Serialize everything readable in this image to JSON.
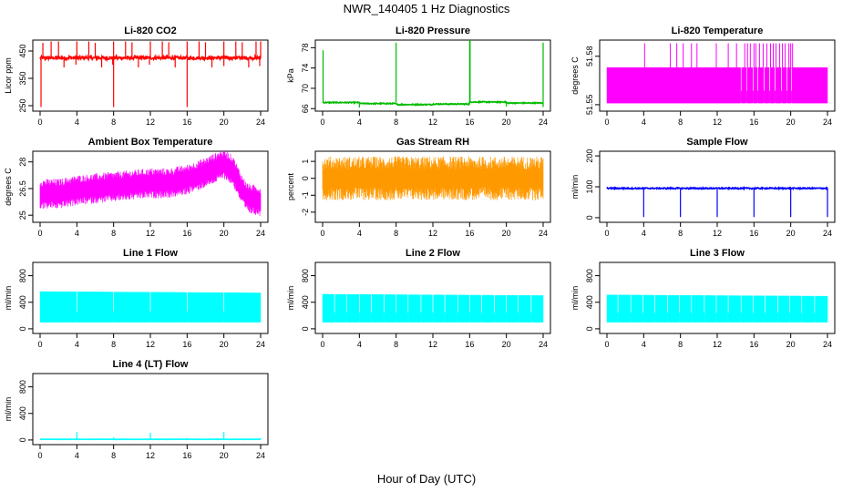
{
  "figure": {
    "title": "NWR_140405  1 Hz Diagnostics",
    "xlabel": "Hour of Day (UTC)"
  },
  "chart_data": [
    {
      "id": "co2",
      "type": "line",
      "title": "Li-820 CO2",
      "ylabel": "Licor ppm",
      "color": "#ff0000",
      "xlim": [
        0,
        24
      ],
      "ylim": [
        230,
        490
      ],
      "xticks": [
        0,
        4,
        8,
        12,
        16,
        20,
        24
      ],
      "yticks": [
        250,
        350,
        450
      ],
      "baseline": 425,
      "noise": 6,
      "spikes_up": [
        [
          0.3,
          480
        ],
        [
          1.2,
          485
        ],
        [
          2.0,
          485
        ],
        [
          4.0,
          485
        ],
        [
          5.3,
          485
        ],
        [
          6.0,
          480
        ],
        [
          8.0,
          485
        ],
        [
          9.3,
          485
        ],
        [
          10.0,
          482
        ],
        [
          12.0,
          485
        ],
        [
          13.3,
          485
        ],
        [
          14.0,
          482
        ],
        [
          16.0,
          485
        ],
        [
          17.3,
          485
        ],
        [
          18.0,
          482
        ],
        [
          20.0,
          485
        ],
        [
          21.3,
          485
        ],
        [
          22.0,
          482
        ],
        [
          23.5,
          485
        ],
        [
          24.0,
          485
        ]
      ],
      "spikes_down": [
        [
          0.1,
          245
        ],
        [
          2.6,
          390
        ],
        [
          3.9,
          400
        ],
        [
          6.7,
          390
        ],
        [
          7.9,
          400
        ],
        [
          8.0,
          245
        ],
        [
          10.7,
          390
        ],
        [
          11.9,
          400
        ],
        [
          14.7,
          390
        ],
        [
          16.0,
          245
        ],
        [
          18.7,
          390
        ],
        [
          20.0,
          395
        ],
        [
          22.7,
          390
        ],
        [
          23.9,
          395
        ]
      ]
    },
    {
      "id": "pressure",
      "type": "line",
      "title": "Li-820 Pressure",
      "ylabel": "kPa",
      "color": "#00bb00",
      "xlim": [
        0,
        24
      ],
      "ylim": [
        65.5,
        79.5
      ],
      "xticks": [
        0,
        4,
        8,
        12,
        16,
        20,
        24
      ],
      "yticks": [
        66,
        70,
        74,
        78
      ],
      "baseline_segments": [
        [
          0,
          4,
          67.2
        ],
        [
          4,
          8,
          67.0
        ],
        [
          8,
          12,
          66.8
        ],
        [
          12,
          16,
          66.9
        ],
        [
          16,
          20,
          67.3
        ],
        [
          20,
          24,
          67.1
        ]
      ],
      "noise": 0.1,
      "spikes_up": [
        [
          0.05,
          77.5
        ],
        [
          8.0,
          79.0
        ],
        [
          16.0,
          79.5
        ],
        [
          16.05,
          79.5
        ],
        [
          24.0,
          79.0
        ]
      ],
      "spikes_down": [
        [
          4.0,
          66.2
        ],
        [
          20.0,
          66.4
        ],
        [
          24.0,
          66.3
        ]
      ]
    },
    {
      "id": "temp",
      "type": "line",
      "title": "Li-820 Temperature",
      "ylabel": "degrees C",
      "color": "#ff00ff",
      "xlim": [
        0,
        24
      ],
      "ylim": [
        51.546,
        51.59
      ],
      "xticks": [
        0,
        4,
        8,
        12,
        16,
        20,
        24
      ],
      "yticks": [
        51.55,
        51.58
      ],
      "band": [
        51.551,
        51.573
      ],
      "spike_top": 51.588,
      "spikes_up": [
        [
          4.1,
          51.588
        ],
        [
          6.9,
          51.588
        ],
        [
          7.6,
          51.588
        ],
        [
          8.3,
          51.588
        ],
        [
          9.2,
          51.588
        ],
        [
          9.8,
          51.588
        ],
        [
          11.9,
          51.588
        ],
        [
          13.2,
          51.588
        ],
        [
          14.1,
          51.588
        ],
        [
          15.0,
          51.588
        ],
        [
          15.3,
          51.588
        ],
        [
          15.6,
          51.588
        ],
        [
          16.0,
          51.588
        ],
        [
          16.2,
          51.588
        ],
        [
          16.6,
          51.588
        ],
        [
          17.0,
          51.588
        ],
        [
          17.4,
          51.588
        ],
        [
          17.8,
          51.588
        ],
        [
          18.1,
          51.588
        ],
        [
          18.4,
          51.588
        ],
        [
          18.8,
          51.588
        ],
        [
          19.1,
          51.588
        ],
        [
          19.4,
          51.588
        ],
        [
          19.8,
          51.588
        ],
        [
          20.0,
          51.588
        ],
        [
          20.2,
          51.588
        ]
      ],
      "gaps": [
        14.6,
        15.2,
        15.9,
        16.4,
        17.1,
        17.7,
        18.3,
        19.0,
        19.6,
        20.1
      ]
    },
    {
      "id": "ambient",
      "type": "line",
      "title": "Ambient Box Temperature",
      "ylabel": "degrees C",
      "color": "#ff00ff",
      "xlim": [
        0,
        24
      ],
      "ylim": [
        24.6,
        28.6
      ],
      "xticks": [
        0,
        4,
        8,
        12,
        16,
        20,
        24
      ],
      "yticks": [
        25.0,
        26.5,
        28.0
      ],
      "center": [
        [
          0,
          26.2
        ],
        [
          2,
          26.2
        ],
        [
          4,
          26.4
        ],
        [
          8,
          26.6
        ],
        [
          12,
          26.8
        ],
        [
          14,
          26.8
        ],
        [
          16,
          27.0
        ],
        [
          18,
          27.4
        ],
        [
          20,
          27.9
        ],
        [
          21,
          27.5
        ],
        [
          22,
          26.4
        ],
        [
          22.5,
          26.0
        ],
        [
          23,
          25.9
        ],
        [
          24,
          25.8
        ]
      ],
      "amplitude": 0.85
    },
    {
      "id": "rh",
      "type": "line",
      "title": "Gas Stream RH",
      "ylabel": "percent",
      "color": "#ff9900",
      "xlim": [
        0,
        24
      ],
      "ylim": [
        -2.6,
        1.6
      ],
      "xticks": [
        0,
        4,
        8,
        12,
        16,
        20,
        24
      ],
      "yticks": [
        -2,
        -1,
        0,
        1
      ],
      "center": 0.0,
      "amplitude": 1.3
    },
    {
      "id": "sample",
      "type": "line",
      "title": "Sample Flow",
      "ylabel": "ml/min",
      "color": "#0000ff",
      "xlim": [
        0,
        24
      ],
      "ylim": [
        -15,
        215
      ],
      "xticks": [
        0,
        4,
        8,
        12,
        16,
        20,
        24
      ],
      "yticks": [
        0,
        100,
        200
      ],
      "baseline": 95,
      "noise": 2,
      "spikes_down": [
        [
          4.0,
          2
        ],
        [
          8.0,
          2
        ],
        [
          12.0,
          2
        ],
        [
          16.0,
          2
        ],
        [
          20.0,
          2
        ],
        [
          24.0,
          2
        ]
      ]
    },
    {
      "id": "line1",
      "type": "line",
      "title": "Line 1 Flow",
      "ylabel": "ml/min",
      "color": "#00ffff",
      "xlim": [
        0,
        24
      ],
      "ylim": [
        -70,
        1000
      ],
      "xticks": [
        0,
        4,
        8,
        12,
        16,
        20,
        24
      ],
      "yticks": [
        0,
        400,
        800
      ],
      "band": [
        100,
        560
      ],
      "band_top_end": 540,
      "gaps": [
        4.0,
        8.0,
        12.0,
        16.0,
        20.0
      ]
    },
    {
      "id": "line2",
      "type": "line",
      "title": "Line 2 Flow",
      "ylabel": "ml/min",
      "color": "#00ffff",
      "xlim": [
        0,
        24
      ],
      "ylim": [
        -70,
        1000
      ],
      "xticks": [
        0,
        4,
        8,
        12,
        16,
        20,
        24
      ],
      "yticks": [
        0,
        400,
        800
      ],
      "band": [
        100,
        520
      ],
      "band_top_end": 500,
      "gaps": [
        1.3,
        2.6,
        4.0,
        5.3,
        6.7,
        8.0,
        9.3,
        10.7,
        12.0,
        13.3,
        14.7,
        16.0,
        17.3,
        18.7,
        20.0,
        21.3,
        22.7
      ]
    },
    {
      "id": "line3",
      "type": "line",
      "title": "Line 3 Flow",
      "ylabel": "ml/min",
      "color": "#00ffff",
      "xlim": [
        0,
        24
      ],
      "ylim": [
        -70,
        1000
      ],
      "xticks": [
        0,
        4,
        8,
        12,
        16,
        20,
        24
      ],
      "yticks": [
        0,
        400,
        800
      ],
      "band": [
        100,
        510
      ],
      "band_top_end": 490,
      "gaps": [
        1.2,
        2.6,
        3.9,
        5.2,
        6.6,
        7.9,
        9.2,
        10.6,
        11.9,
        13.2,
        14.6,
        15.9,
        17.2,
        18.6,
        19.9,
        21.2,
        22.6
      ]
    },
    {
      "id": "line4",
      "type": "line",
      "title": "Line 4 (LT) Flow",
      "ylabel": "ml/min",
      "color": "#00ffff",
      "xlim": [
        0,
        24
      ],
      "ylim": [
        -70,
        1000
      ],
      "xticks": [
        0,
        4,
        8,
        12,
        16,
        20,
        24
      ],
      "yticks": [
        0,
        400,
        800
      ],
      "baseline": 10,
      "noise": 2,
      "spikes_up": [
        [
          4.0,
          120
        ],
        [
          8.0,
          40
        ],
        [
          12.0,
          110
        ],
        [
          16.0,
          30
        ],
        [
          20.0,
          120
        ],
        [
          24.0,
          30
        ]
      ]
    }
  ]
}
